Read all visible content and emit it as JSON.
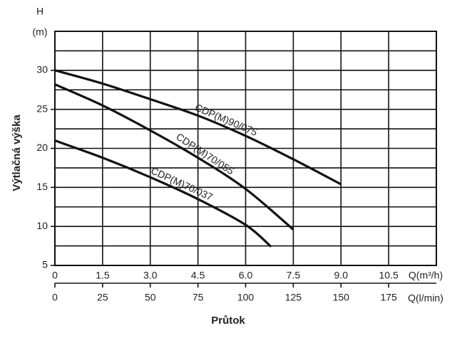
{
  "chart_data": {
    "type": "line",
    "x_label": "Průtok",
    "y_label": "Výtlačná výška",
    "y_unit_symbol": "H",
    "y_unit": "(m)",
    "x_unit": "Q(m³/h)",
    "x2_unit": "Q(l/min)",
    "x": [
      0,
      1.5,
      3,
      4.5,
      6,
      7.5,
      9
    ],
    "series": [
      {
        "name": "CDP(M)90/075",
        "color": "#111111",
        "values": [
          30,
          28.3,
          26.3,
          24.2,
          21.6,
          18.6,
          15.4
        ]
      },
      {
        "name": "CDP(M)70/055",
        "color": "#111111",
        "values": [
          28.2,
          25.5,
          22.3,
          18.8,
          14.8,
          9.6,
          null
        ]
      },
      {
        "name": "CDP(M)70/037",
        "color": "#111111",
        "x": [
          0,
          1.5,
          3,
          4.5,
          6,
          6.8
        ],
        "values": [
          21,
          18.8,
          16.3,
          13.5,
          10.2,
          7.4
        ]
      }
    ],
    "xlim": [
      0,
      12
    ],
    "xticks": [
      0,
      1.5,
      {
        "value": 3,
        "label": "3.0"
      },
      4.5,
      {
        "value": 6,
        "label": "6.0"
      },
      7.5,
      {
        "value": 9,
        "label": "9.0"
      },
      10.5
    ],
    "x2lim": [
      0,
      200
    ],
    "x2ticks": [
      0,
      25,
      50,
      75,
      100,
      125,
      150,
      175
    ],
    "ylim": [
      5,
      35
    ],
    "yticks": [
      5,
      10,
      15,
      20,
      25,
      30
    ],
    "minor_yticks": [
      7.5,
      12.5,
      17.5,
      22.5,
      27.5,
      32.5
    ],
    "grid": true
  }
}
